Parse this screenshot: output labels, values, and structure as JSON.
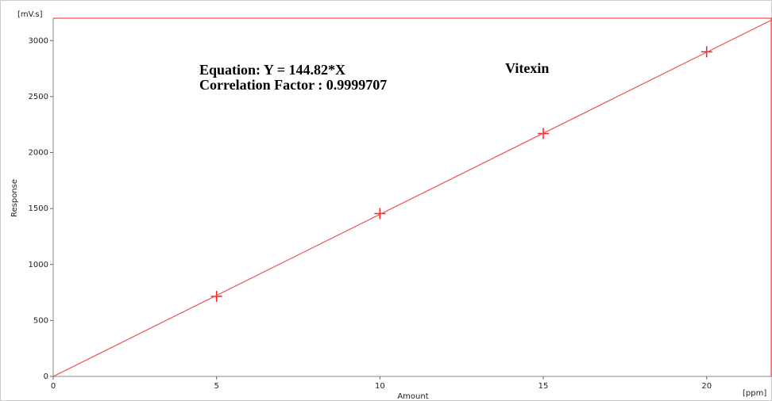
{
  "chart_data": {
    "type": "scatter",
    "y_unit": "[mV.s]",
    "x_unit": "[ppm]",
    "ylabel": "Response",
    "xlabel": "Amount",
    "annotations": [
      "Equation:  Y = 144.82*X",
      "Correlation Factor  :  0.9999707",
      "Vitexin"
    ],
    "xlim": [
      0,
      22
    ],
    "ylim": [
      0,
      3200
    ],
    "xticks": [
      0,
      5,
      10,
      15,
      20
    ],
    "yticks": [
      0,
      500,
      1000,
      1500,
      2000,
      2500,
      3000
    ],
    "frame_color": "#ff2020",
    "series": [
      {
        "kind": "points",
        "color": "#ff2020",
        "x": [
          5,
          10,
          15,
          20
        ],
        "values": [
          715,
          1455,
          2170,
          2900
        ]
      },
      {
        "kind": "line",
        "color": "#f05050",
        "x": [
          0,
          22
        ],
        "values": [
          0,
          3186
        ]
      }
    ]
  }
}
